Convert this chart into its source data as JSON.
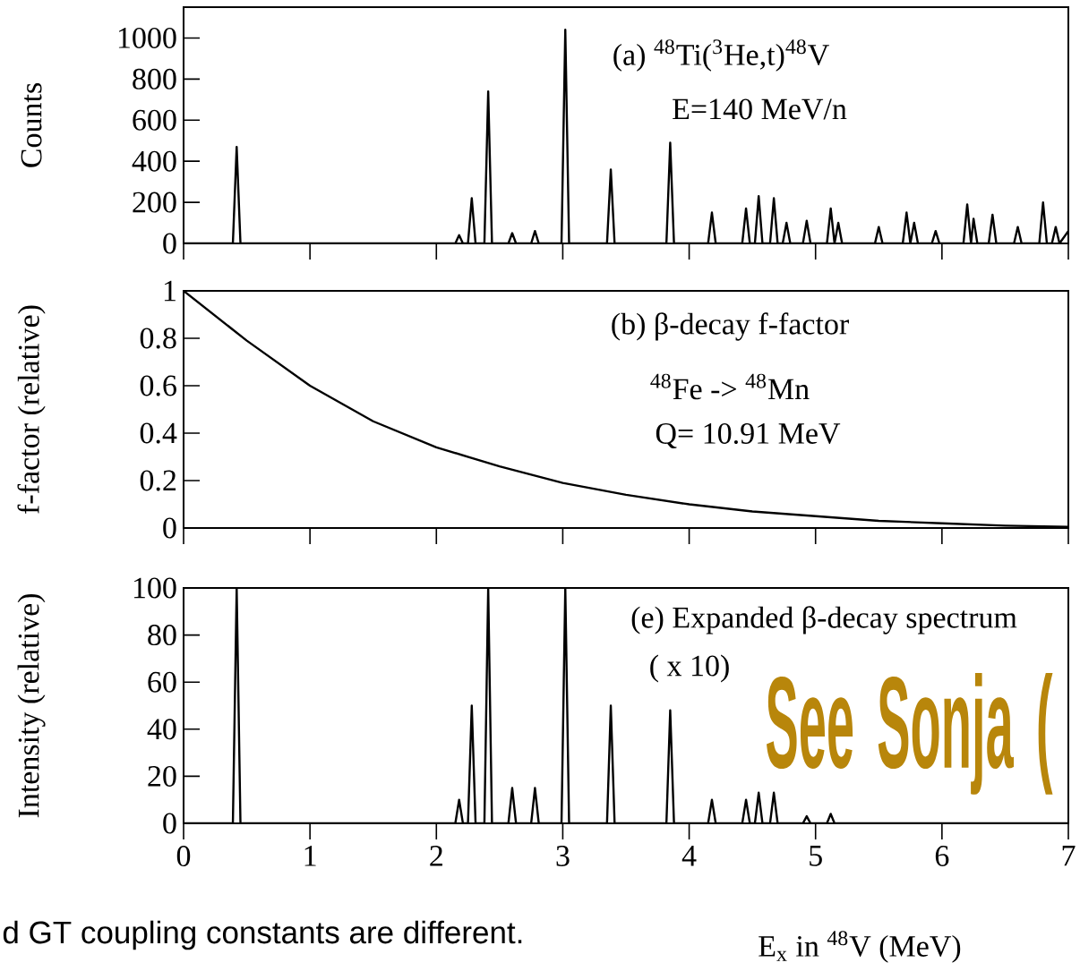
{
  "chart_data": [
    {
      "type": "line",
      "ylabel": "Counts",
      "color": "#000000",
      "tick_labels": "y",
      "xlim": [
        0,
        7
      ],
      "ylim": [
        0,
        1150
      ],
      "xticks": [
        0,
        1,
        2,
        3,
        4,
        5,
        6,
        7
      ],
      "yticks": [
        0,
        200,
        400,
        600,
        800,
        1000
      ],
      "annotations": [
        "(a) $^{48}$Ti($^{3}$He,t)$^{48}$V",
        "E=140 MeV/n"
      ],
      "x": [
        0,
        0.39,
        0.42,
        0.45,
        2.15,
        2.18,
        2.21,
        2.25,
        2.28,
        2.31,
        2.38,
        2.41,
        2.44,
        2.57,
        2.6,
        2.63,
        2.75,
        2.78,
        2.81,
        2.99,
        3.02,
        3.05,
        3.35,
        3.38,
        3.41,
        3.82,
        3.85,
        3.88,
        4.15,
        4.18,
        4.21,
        4.42,
        4.45,
        4.48,
        4.52,
        4.55,
        4.58,
        4.64,
        4.67,
        4.7,
        4.74,
        4.77,
        4.8,
        4.9,
        4.93,
        4.96,
        5.09,
        5.12,
        5.15,
        5.18,
        5.21,
        5.47,
        5.5,
        5.53,
        5.69,
        5.72,
        5.75,
        5.78,
        5.81,
        5.92,
        5.95,
        5.98,
        6.17,
        6.2,
        6.23,
        6.25,
        6.28,
        6.37,
        6.4,
        6.43,
        6.57,
        6.6,
        6.63,
        6.77,
        6.8,
        6.83,
        6.87,
        6.9,
        6.93,
        7
      ],
      "values": [
        0,
        0,
        470,
        0,
        0,
        40,
        0,
        0,
        220,
        0,
        0,
        740,
        0,
        0,
        50,
        0,
        0,
        60,
        0,
        0,
        1040,
        0,
        0,
        360,
        0,
        0,
        490,
        0,
        0,
        150,
        0,
        0,
        170,
        0,
        0,
        230,
        0,
        0,
        220,
        0,
        0,
        100,
        0,
        0,
        110,
        0,
        0,
        170,
        0,
        100,
        0,
        0,
        80,
        0,
        0,
        150,
        0,
        100,
        0,
        0,
        60,
        0,
        0,
        190,
        0,
        120,
        0,
        0,
        140,
        0,
        0,
        80,
        0,
        0,
        200,
        0,
        0,
        80,
        0,
        60
      ]
    },
    {
      "type": "line",
      "ylabel": "f-factor (relative)",
      "color": "#000000",
      "tick_labels": "y",
      "xlim": [
        0,
        7
      ],
      "ylim": [
        0,
        1
      ],
      "xticks": [
        0,
        1,
        2,
        3,
        4,
        5,
        6,
        7
      ],
      "yticks": [
        0,
        0.2,
        0.4,
        0.6,
        0.8,
        1
      ],
      "annotations": [
        "(b) β-decay f-factor",
        "$^{48}$Fe -> $^{48}$Mn",
        "Q=  10.91 MeV"
      ],
      "x": [
        0,
        0.5,
        1,
        1.5,
        2,
        2.5,
        3,
        3.5,
        4,
        4.5,
        5,
        5.5,
        6,
        6.5,
        7
      ],
      "values": [
        1.0,
        0.79,
        0.6,
        0.45,
        0.34,
        0.26,
        0.19,
        0.14,
        0.1,
        0.07,
        0.05,
        0.03,
        0.02,
        0.01,
        0.005
      ]
    },
    {
      "type": "line",
      "ylabel": "Intensity (relative)",
      "xlabel": "E$_{x}$ in $^{48}$V (MeV)",
      "color": "#000000",
      "xlim": [
        0,
        7
      ],
      "ylim": [
        0,
        100
      ],
      "xticks": [
        0,
        1,
        2,
        3,
        4,
        5,
        6,
        7
      ],
      "yticks": [
        0,
        20,
        40,
        60,
        80,
        100
      ],
      "annotations": [
        "(e) Expanded β-decay spectrum",
        "( x 10)",
        "See Sonja (",
        "d GT coupling constants are different."
      ],
      "x": [
        0,
        0.39,
        0.42,
        0.45,
        2.15,
        2.18,
        2.21,
        2.25,
        2.28,
        2.31,
        2.38,
        2.41,
        2.44,
        2.57,
        2.6,
        2.63,
        2.75,
        2.78,
        2.81,
        2.99,
        3.02,
        3.05,
        3.35,
        3.38,
        3.41,
        3.82,
        3.85,
        3.88,
        4.15,
        4.18,
        4.21,
        4.42,
        4.45,
        4.48,
        4.52,
        4.55,
        4.58,
        4.64,
        4.67,
        4.7,
        4.9,
        4.93,
        4.96,
        5.09,
        5.12,
        5.15,
        7
      ],
      "values": [
        0,
        0,
        100,
        0,
        0,
        10,
        0,
        0,
        50,
        0,
        0,
        100,
        0,
        0,
        15,
        0,
        0,
        15,
        0,
        0,
        100,
        0,
        0,
        50,
        0,
        0,
        48,
        0,
        0,
        10,
        0,
        0,
        10,
        0,
        0,
        13,
        0,
        0,
        13,
        0,
        0,
        3,
        0,
        0,
        4,
        0,
        0
      ]
    }
  ]
}
